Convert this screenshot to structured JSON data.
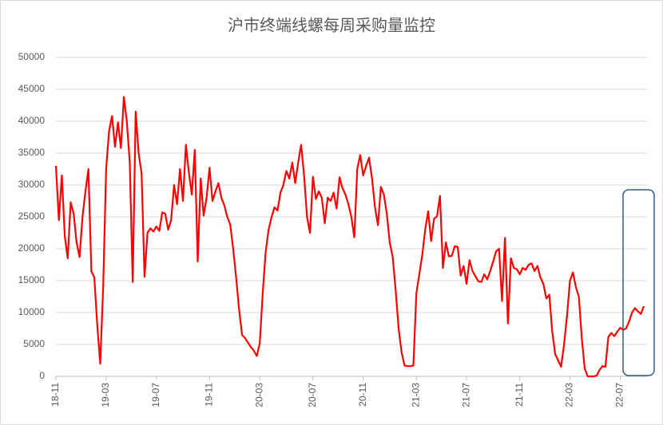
{
  "chart_data": {
    "type": "line",
    "title": "沪市终端线螺每周采购量监控",
    "color": "#ff0000",
    "grid": true,
    "ylim": [
      0,
      50000
    ],
    "yticks": [
      0,
      5000,
      10000,
      15000,
      20000,
      25000,
      30000,
      35000,
      40000,
      45000,
      50000
    ],
    "categories": [
      "18-11",
      null,
      null,
      null,
      null,
      null,
      null,
      null,
      null,
      null,
      null,
      null,
      null,
      null,
      null,
      null,
      null,
      "19-03",
      null,
      null,
      null,
      null,
      null,
      null,
      null,
      null,
      null,
      null,
      null,
      null,
      null,
      null,
      null,
      null,
      "19-07",
      null,
      null,
      null,
      null,
      null,
      null,
      null,
      null,
      null,
      null,
      null,
      null,
      null,
      null,
      null,
      null,
      null,
      "19-11",
      null,
      null,
      null,
      null,
      null,
      null,
      null,
      null,
      null,
      null,
      null,
      null,
      null,
      null,
      null,
      null,
      "20-03",
      null,
      null,
      null,
      null,
      null,
      null,
      null,
      null,
      null,
      null,
      null,
      null,
      null,
      null,
      null,
      null,
      null,
      "20-07",
      null,
      null,
      null,
      null,
      null,
      null,
      null,
      null,
      null,
      null,
      null,
      null,
      null,
      null,
      null,
      null,
      "20-11",
      null,
      null,
      null,
      null,
      null,
      null,
      null,
      null,
      null,
      null,
      null,
      null,
      null,
      null,
      null,
      null,
      null,
      "21-03",
      null,
      null,
      null,
      null,
      null,
      null,
      null,
      null,
      null,
      null,
      null,
      null,
      null,
      null,
      null,
      null,
      "21-07",
      null,
      null,
      null,
      null,
      null,
      null,
      null,
      null,
      null,
      null,
      null,
      null,
      null,
      null,
      null,
      null,
      null,
      "21-11",
      null,
      null,
      null,
      null,
      null,
      null,
      null,
      null,
      null,
      null,
      null,
      null,
      null,
      null,
      null,
      null,
      "22-03",
      null,
      null,
      null,
      null,
      null,
      null,
      null,
      null,
      null,
      null,
      null,
      null,
      null,
      null,
      null,
      null,
      "22-07",
      null,
      null,
      null,
      null,
      null,
      null,
      null,
      null
    ],
    "values": [
      33000,
      24500,
      31500,
      22000,
      18500,
      27300,
      25500,
      21000,
      18700,
      25000,
      29000,
      32500,
      16500,
      15500,
      8000,
      2000,
      14000,
      32500,
      38500,
      40800,
      36000,
      39800,
      35800,
      43800,
      40000,
      33500,
      14800,
      41500,
      35000,
      31800,
      15600,
      22500,
      23200,
      22700,
      23500,
      22800,
      25700,
      25500,
      23000,
      24500,
      30000,
      27000,
      32500,
      27500,
      36300,
      32000,
      28500,
      35500,
      18000,
      31000,
      25200,
      28000,
      32700,
      27500,
      29000,
      30300,
      28000,
      26800,
      25000,
      23800,
      20000,
      15500,
      10500,
      6500,
      6000,
      5300,
      4600,
      4000,
      3200,
      5200,
      13000,
      19500,
      23000,
      25000,
      26500,
      26000,
      28800,
      30000,
      32200,
      31000,
      33500,
      30300,
      33500,
      36300,
      31500,
      25000,
      22500,
      31300,
      27800,
      29000,
      28000,
      24000,
      28000,
      27500,
      28800,
      26300,
      31200,
      29500,
      28500,
      27000,
      25000,
      21800,
      32500,
      34700,
      31500,
      33000,
      34300,
      31000,
      26500,
      23700,
      29700,
      28500,
      25500,
      21000,
      18700,
      13500,
      7500,
      3800,
      1700,
      1600,
      1600,
      1700,
      13000,
      16000,
      19000,
      23000,
      25900,
      21200,
      24700,
      25100,
      28300,
      17000,
      21000,
      18800,
      18900,
      20400,
      20300,
      15800,
      17300,
      14500,
      18200,
      16500,
      15700,
      14900,
      14800,
      16000,
      15200,
      16500,
      18000,
      19600,
      20000,
      11800,
      21700,
      8300,
      18500,
      17000,
      16800,
      16000,
      17000,
      16700,
      17500,
      17700,
      16500,
      17300,
      15500,
      14500,
      12200,
      12800,
      7000,
      3500,
      2500,
      1500,
      5000,
      9500,
      15000,
      16300,
      14000,
      12500,
      6000,
      1200,
      0,
      0,
      0,
      100,
      1000,
      1600,
      1500,
      6200,
      6800,
      6300,
      7000,
      7600,
      7300,
      7500,
      8600,
      10000,
      10700,
      10200,
      9800,
      11000
    ]
  }
}
